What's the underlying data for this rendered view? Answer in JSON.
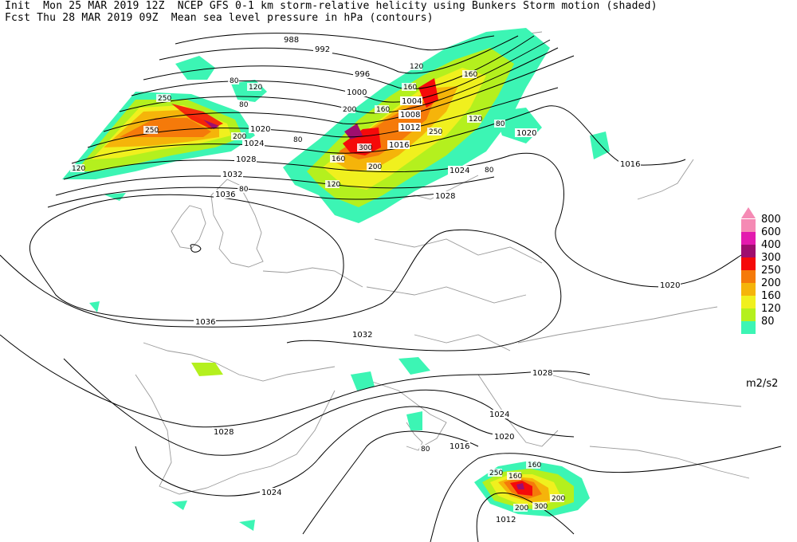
{
  "header": {
    "line1": "Init  Mon 25 MAR 2019 12Z  NCEP GFS 0-1 km storm-relative helicity using Bunkers Storm motion (shaded)",
    "line2": "Fcst Thu 28 MAR 2019 09Z  Mean sea level pressure in hPa (contours)"
  },
  "legend": {
    "units": "m2/s2",
    "levels": [
      {
        "label": "800",
        "color": "#f58ab4"
      },
      {
        "label": "600",
        "color": "#e31aae"
      },
      {
        "label": "400",
        "color": "#9e0e6e"
      },
      {
        "label": "300",
        "color": "#f50a0a"
      },
      {
        "label": "250",
        "color": "#f57a0a"
      },
      {
        "label": "200",
        "color": "#f5b40a"
      },
      {
        "label": "160",
        "color": "#f0f01e"
      },
      {
        "label": "120",
        "color": "#b4f01e"
      },
      {
        "label": "80",
        "color": "#3cf5b4"
      }
    ]
  },
  "isobar_labels": [
    "988",
    "992",
    "996",
    "1000",
    "1004",
    "1008",
    "1012",
    "1016",
    "1020",
    "1024",
    "1028",
    "1032",
    "1036",
    "1020",
    "1016",
    "1024",
    "1028",
    "1032",
    "1036",
    "1028",
    "1024",
    "1020",
    "1016",
    "1012",
    "1028",
    "1024",
    "1020"
  ],
  "helicity_labels": [
    "250",
    "250",
    "200",
    "120",
    "80",
    "160",
    "120",
    "200",
    "160",
    "300",
    "160",
    "200",
    "160",
    "120",
    "80",
    "250",
    "160",
    "80",
    "200",
    "250",
    "80",
    "120",
    "160",
    "200",
    "300",
    "80",
    "80",
    "120",
    "80"
  ]
}
